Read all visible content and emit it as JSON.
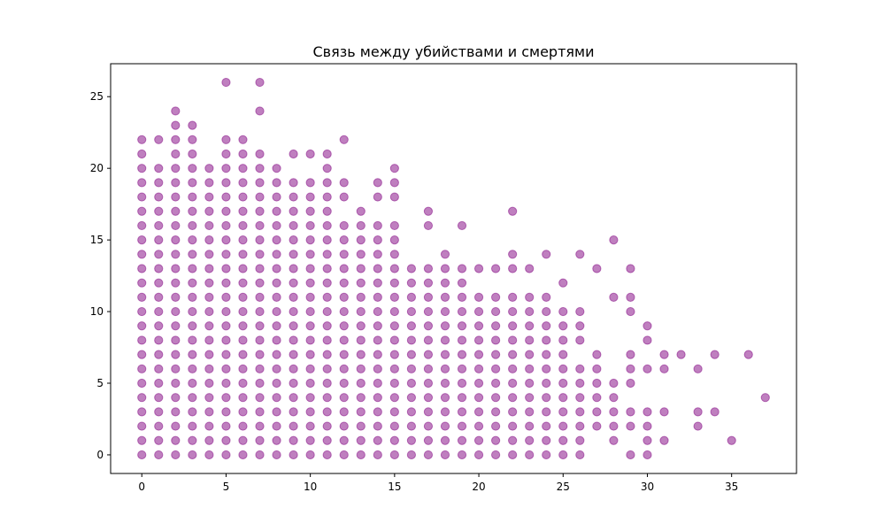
{
  "chart_data": {
    "type": "scatter",
    "title": "Связь между убийствами и смертями",
    "xlabel": "",
    "ylabel": "",
    "xlim": [
      -1.85,
      38.85
    ],
    "ylim": [
      -1.3,
      27.3
    ],
    "x_ticks": [
      0,
      5,
      10,
      15,
      20,
      25,
      30,
      35
    ],
    "y_ticks": [
      0,
      5,
      10,
      15,
      20,
      25
    ],
    "grid": false,
    "marker_color": "#800080",
    "marker_alpha": 0.5,
    "columns": [
      {
        "x": 0,
        "y": [
          0,
          1,
          2,
          3,
          4,
          5,
          6,
          7,
          8,
          9,
          10,
          11,
          12,
          13,
          14,
          15,
          16,
          17,
          18,
          19,
          20,
          21,
          22
        ]
      },
      {
        "x": 1,
        "y": [
          0,
          1,
          2,
          3,
          4,
          5,
          6,
          7,
          8,
          9,
          10,
          11,
          12,
          13,
          14,
          15,
          16,
          17,
          18,
          19,
          20,
          22
        ]
      },
      {
        "x": 2,
        "y": [
          0,
          1,
          2,
          3,
          4,
          5,
          6,
          7,
          8,
          9,
          10,
          11,
          12,
          13,
          14,
          15,
          16,
          17,
          18,
          19,
          20,
          21,
          22,
          23,
          24
        ]
      },
      {
        "x": 3,
        "y": [
          0,
          1,
          2,
          3,
          4,
          5,
          6,
          7,
          8,
          9,
          10,
          11,
          12,
          13,
          14,
          15,
          16,
          17,
          18,
          19,
          20,
          21,
          22,
          23
        ]
      },
      {
        "x": 4,
        "y": [
          0,
          1,
          2,
          3,
          4,
          5,
          6,
          7,
          8,
          9,
          10,
          11,
          12,
          13,
          14,
          15,
          16,
          17,
          18,
          19,
          20
        ]
      },
      {
        "x": 5,
        "y": [
          0,
          1,
          2,
          3,
          4,
          5,
          6,
          7,
          8,
          9,
          10,
          11,
          12,
          13,
          14,
          15,
          16,
          17,
          18,
          19,
          20,
          21,
          22,
          26
        ]
      },
      {
        "x": 6,
        "y": [
          0,
          1,
          2,
          3,
          4,
          5,
          6,
          7,
          8,
          9,
          10,
          11,
          12,
          13,
          14,
          15,
          16,
          17,
          18,
          19,
          20,
          21,
          22
        ]
      },
      {
        "x": 7,
        "y": [
          0,
          1,
          2,
          3,
          4,
          5,
          6,
          7,
          8,
          9,
          10,
          11,
          12,
          13,
          14,
          15,
          16,
          17,
          18,
          19,
          20,
          21,
          24,
          26
        ]
      },
      {
        "x": 8,
        "y": [
          0,
          1,
          2,
          3,
          4,
          5,
          6,
          7,
          8,
          9,
          10,
          11,
          12,
          13,
          14,
          15,
          16,
          17,
          18,
          19,
          20
        ]
      },
      {
        "x": 9,
        "y": [
          0,
          1,
          2,
          3,
          4,
          5,
          6,
          7,
          8,
          9,
          10,
          11,
          12,
          13,
          14,
          15,
          16,
          17,
          18,
          19,
          21
        ]
      },
      {
        "x": 10,
        "y": [
          0,
          1,
          2,
          3,
          4,
          5,
          6,
          7,
          8,
          9,
          10,
          11,
          12,
          13,
          14,
          15,
          16,
          17,
          18,
          19,
          21
        ]
      },
      {
        "x": 11,
        "y": [
          0,
          1,
          2,
          3,
          4,
          5,
          6,
          7,
          8,
          9,
          10,
          11,
          12,
          13,
          14,
          15,
          16,
          17,
          18,
          19,
          20,
          21
        ]
      },
      {
        "x": 12,
        "y": [
          0,
          1,
          2,
          3,
          4,
          5,
          6,
          7,
          8,
          9,
          10,
          11,
          12,
          13,
          14,
          15,
          16,
          18,
          19,
          22
        ]
      },
      {
        "x": 13,
        "y": [
          0,
          1,
          2,
          3,
          4,
          5,
          6,
          7,
          8,
          9,
          10,
          11,
          12,
          13,
          14,
          15,
          16,
          17
        ]
      },
      {
        "x": 14,
        "y": [
          0,
          1,
          2,
          3,
          4,
          5,
          6,
          7,
          8,
          9,
          10,
          11,
          12,
          13,
          14,
          15,
          16,
          18,
          19
        ]
      },
      {
        "x": 15,
        "y": [
          0,
          1,
          2,
          3,
          4,
          5,
          6,
          7,
          8,
          9,
          10,
          11,
          12,
          13,
          14,
          15,
          16,
          18,
          19,
          20
        ]
      },
      {
        "x": 16,
        "y": [
          0,
          1,
          2,
          3,
          4,
          5,
          6,
          7,
          8,
          9,
          10,
          11,
          12,
          13
        ]
      },
      {
        "x": 17,
        "y": [
          0,
          1,
          2,
          3,
          4,
          5,
          6,
          7,
          8,
          9,
          10,
          11,
          12,
          13,
          16,
          17
        ]
      },
      {
        "x": 18,
        "y": [
          0,
          1,
          2,
          3,
          4,
          5,
          6,
          7,
          8,
          9,
          10,
          11,
          12,
          13,
          14
        ]
      },
      {
        "x": 19,
        "y": [
          0,
          1,
          2,
          3,
          4,
          5,
          6,
          7,
          8,
          9,
          10,
          11,
          12,
          13,
          16
        ]
      },
      {
        "x": 20,
        "y": [
          0,
          1,
          2,
          3,
          4,
          5,
          6,
          7,
          8,
          9,
          10,
          11,
          13
        ]
      },
      {
        "x": 21,
        "y": [
          0,
          1,
          2,
          3,
          4,
          5,
          6,
          7,
          8,
          9,
          10,
          11,
          13
        ]
      },
      {
        "x": 22,
        "y": [
          0,
          1,
          2,
          3,
          4,
          5,
          6,
          7,
          8,
          9,
          10,
          11,
          13,
          14,
          17
        ]
      },
      {
        "x": 23,
        "y": [
          0,
          1,
          2,
          3,
          4,
          5,
          6,
          7,
          8,
          9,
          10,
          11,
          13
        ]
      },
      {
        "x": 24,
        "y": [
          0,
          1,
          2,
          3,
          4,
          5,
          6,
          7,
          8,
          9,
          10,
          11,
          14
        ]
      },
      {
        "x": 25,
        "y": [
          0,
          1,
          2,
          3,
          4,
          5,
          6,
          7,
          8,
          9,
          10,
          12
        ]
      },
      {
        "x": 26,
        "y": [
          0,
          1,
          2,
          3,
          4,
          5,
          6,
          8,
          9,
          10,
          14
        ]
      },
      {
        "x": 27,
        "y": [
          2,
          3,
          4,
          5,
          6,
          7,
          13
        ]
      },
      {
        "x": 28,
        "y": [
          1,
          2,
          3,
          4,
          5,
          11,
          15
        ]
      },
      {
        "x": 29,
        "y": [
          0,
          2,
          3,
          5,
          6,
          7,
          10,
          11,
          13
        ]
      },
      {
        "x": 30,
        "y": [
          0,
          1,
          2,
          3,
          6,
          8,
          9
        ]
      },
      {
        "x": 31,
        "y": [
          1,
          3,
          6,
          7
        ]
      },
      {
        "x": 32,
        "y": [
          7
        ]
      },
      {
        "x": 33,
        "y": [
          2,
          3,
          6
        ]
      },
      {
        "x": 34,
        "y": [
          3,
          7
        ]
      },
      {
        "x": 35,
        "y": [
          1
        ]
      },
      {
        "x": 36,
        "y": [
          7
        ]
      },
      {
        "x": 37,
        "y": [
          4
        ]
      }
    ]
  }
}
